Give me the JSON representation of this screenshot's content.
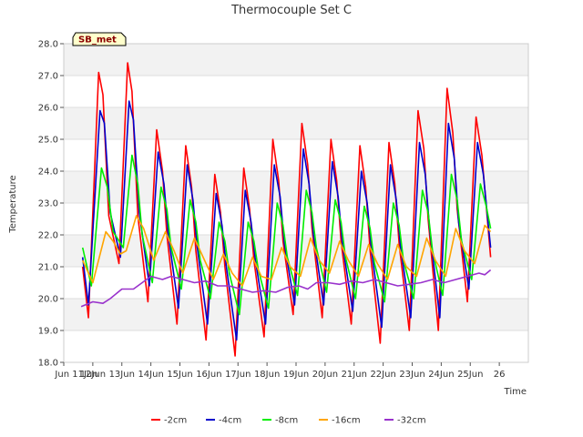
{
  "chart_data": {
    "type": "line",
    "title": "Thermocouple Set C",
    "xlabel": "Time",
    "ylabel": "Temperature",
    "badge": "SB_met",
    "ylim": [
      18.0,
      28.0
    ],
    "xlim": [
      0,
      16
    ],
    "yticks": [
      "18.0",
      "19.0",
      "20.0",
      "21.0",
      "22.0",
      "23.0",
      "24.0",
      "25.0",
      "26.0",
      "27.0",
      "28.0"
    ],
    "xticks": [
      "Jun 11Jun",
      "12Jun",
      "13Jun",
      "14Jun",
      "15Jun",
      "16Jun",
      "17Jun",
      "18Jun",
      "19Jun",
      "20Jun",
      "21Jun",
      "22Jun",
      "23Jun",
      "24Jun",
      "25Jun",
      "26"
    ],
    "grid": "horizontal bands",
    "legend_position": "bottom",
    "series": [
      {
        "name": "-2cm",
        "color": "#ff0000",
        "points": [
          [
            0.65,
            21.0
          ],
          [
            0.85,
            19.4
          ],
          [
            1.2,
            27.1
          ],
          [
            1.35,
            26.4
          ],
          [
            1.55,
            22.6
          ],
          [
            1.9,
            21.1
          ],
          [
            2.2,
            27.4
          ],
          [
            2.35,
            26.5
          ],
          [
            2.55,
            22.6
          ],
          [
            2.9,
            19.9
          ],
          [
            3.2,
            25.3
          ],
          [
            3.4,
            24.0
          ],
          [
            3.55,
            22.0
          ],
          [
            3.9,
            19.2
          ],
          [
            4.2,
            24.8
          ],
          [
            4.4,
            23.5
          ],
          [
            4.55,
            21.5
          ],
          [
            4.9,
            18.7
          ],
          [
            5.2,
            23.9
          ],
          [
            5.4,
            22.7
          ],
          [
            5.55,
            21.0
          ],
          [
            5.9,
            18.2
          ],
          [
            6.2,
            24.1
          ],
          [
            6.4,
            22.8
          ],
          [
            6.55,
            21.2
          ],
          [
            6.9,
            18.8
          ],
          [
            7.2,
            25.0
          ],
          [
            7.4,
            23.7
          ],
          [
            7.55,
            21.8
          ],
          [
            7.9,
            19.5
          ],
          [
            8.2,
            25.5
          ],
          [
            8.4,
            24.2
          ],
          [
            8.55,
            22.2
          ],
          [
            8.9,
            19.4
          ],
          [
            9.2,
            25.0
          ],
          [
            9.4,
            23.7
          ],
          [
            9.55,
            21.8
          ],
          [
            9.9,
            19.2
          ],
          [
            10.2,
            24.8
          ],
          [
            10.4,
            23.5
          ],
          [
            10.55,
            21.5
          ],
          [
            10.9,
            18.6
          ],
          [
            11.2,
            24.9
          ],
          [
            11.4,
            23.6
          ],
          [
            11.55,
            21.7
          ],
          [
            11.9,
            19.0
          ],
          [
            12.2,
            25.9
          ],
          [
            12.4,
            24.7
          ],
          [
            12.55,
            22.5
          ],
          [
            12.9,
            19.0
          ],
          [
            13.2,
            26.6
          ],
          [
            13.4,
            25.2
          ],
          [
            13.55,
            22.8
          ],
          [
            13.9,
            19.9
          ],
          [
            14.2,
            25.7
          ],
          [
            14.4,
            24.5
          ],
          [
            14.55,
            22.9
          ],
          [
            14.7,
            21.3
          ]
        ]
      },
      {
        "name": "-4cm",
        "color": "#0000cc",
        "points": [
          [
            0.65,
            21.3
          ],
          [
            0.85,
            19.8
          ],
          [
            1.25,
            25.9
          ],
          [
            1.4,
            25.5
          ],
          [
            1.6,
            22.7
          ],
          [
            1.95,
            21.3
          ],
          [
            2.25,
            26.2
          ],
          [
            2.4,
            25.6
          ],
          [
            2.6,
            22.7
          ],
          [
            2.95,
            20.4
          ],
          [
            3.25,
            24.6
          ],
          [
            3.45,
            23.6
          ],
          [
            3.6,
            22.0
          ],
          [
            3.95,
            19.7
          ],
          [
            4.25,
            24.2
          ],
          [
            4.45,
            23.1
          ],
          [
            4.6,
            21.6
          ],
          [
            4.95,
            19.2
          ],
          [
            5.25,
            23.3
          ],
          [
            5.45,
            22.3
          ],
          [
            5.6,
            21.0
          ],
          [
            5.95,
            18.7
          ],
          [
            6.25,
            23.4
          ],
          [
            6.45,
            22.4
          ],
          [
            6.6,
            21.2
          ],
          [
            6.95,
            19.2
          ],
          [
            7.25,
            24.2
          ],
          [
            7.45,
            23.2
          ],
          [
            7.6,
            21.7
          ],
          [
            7.95,
            19.8
          ],
          [
            8.25,
            24.7
          ],
          [
            8.45,
            23.6
          ],
          [
            8.6,
            22.0
          ],
          [
            8.95,
            19.8
          ],
          [
            9.25,
            24.3
          ],
          [
            9.45,
            23.2
          ],
          [
            9.6,
            21.7
          ],
          [
            9.95,
            19.6
          ],
          [
            10.25,
            24.0
          ],
          [
            10.45,
            23.0
          ],
          [
            10.6,
            21.5
          ],
          [
            10.95,
            19.1
          ],
          [
            11.25,
            24.2
          ],
          [
            11.45,
            23.1
          ],
          [
            11.6,
            21.6
          ],
          [
            11.95,
            19.4
          ],
          [
            12.25,
            24.9
          ],
          [
            12.45,
            23.9
          ],
          [
            12.6,
            22.2
          ],
          [
            12.95,
            19.4
          ],
          [
            13.25,
            25.5
          ],
          [
            13.45,
            24.4
          ],
          [
            13.6,
            22.4
          ],
          [
            13.95,
            20.3
          ],
          [
            14.25,
            24.9
          ],
          [
            14.45,
            23.9
          ],
          [
            14.6,
            22.5
          ],
          [
            14.7,
            21.6
          ]
        ]
      },
      {
        "name": "-8cm",
        "color": "#00ee00",
        "points": [
          [
            0.65,
            21.6
          ],
          [
            0.95,
            20.4
          ],
          [
            1.3,
            24.1
          ],
          [
            1.5,
            23.5
          ],
          [
            1.7,
            22.1
          ],
          [
            2.05,
            21.6
          ],
          [
            2.35,
            24.5
          ],
          [
            2.55,
            23.6
          ],
          [
            2.7,
            22.0
          ],
          [
            3.05,
            20.5
          ],
          [
            3.35,
            23.5
          ],
          [
            3.55,
            22.8
          ],
          [
            3.7,
            21.6
          ],
          [
            4.05,
            20.3
          ],
          [
            4.35,
            23.1
          ],
          [
            4.55,
            22.4
          ],
          [
            4.7,
            21.2
          ],
          [
            5.05,
            20.0
          ],
          [
            5.35,
            22.4
          ],
          [
            5.55,
            21.8
          ],
          [
            5.7,
            20.8
          ],
          [
            6.05,
            19.5
          ],
          [
            6.35,
            22.4
          ],
          [
            6.55,
            21.8
          ],
          [
            6.7,
            20.9
          ],
          [
            7.05,
            19.7
          ],
          [
            7.35,
            23.0
          ],
          [
            7.55,
            22.3
          ],
          [
            7.7,
            21.3
          ],
          [
            8.05,
            20.1
          ],
          [
            8.35,
            23.4
          ],
          [
            8.55,
            22.7
          ],
          [
            8.7,
            21.6
          ],
          [
            9.05,
            20.2
          ],
          [
            9.35,
            23.1
          ],
          [
            9.55,
            22.4
          ],
          [
            9.7,
            21.3
          ],
          [
            10.05,
            20.0
          ],
          [
            10.35,
            22.9
          ],
          [
            10.55,
            22.2
          ],
          [
            10.7,
            21.1
          ],
          [
            11.05,
            19.9
          ],
          [
            11.35,
            23.0
          ],
          [
            11.55,
            22.3
          ],
          [
            11.7,
            21.2
          ],
          [
            12.05,
            20.0
          ],
          [
            12.35,
            23.4
          ],
          [
            12.55,
            22.7
          ],
          [
            12.7,
            21.5
          ],
          [
            13.05,
            20.1
          ],
          [
            13.35,
            23.9
          ],
          [
            13.55,
            23.1
          ],
          [
            13.7,
            21.8
          ],
          [
            14.05,
            20.6
          ],
          [
            14.35,
            23.6
          ],
          [
            14.55,
            22.9
          ],
          [
            14.7,
            22.2
          ]
        ]
      },
      {
        "name": "-16cm",
        "color": "#ffa500",
        "points": [
          [
            0.65,
            21.2
          ],
          [
            1.0,
            20.5
          ],
          [
            1.45,
            22.1
          ],
          [
            1.7,
            21.8
          ],
          [
            1.95,
            21.4
          ],
          [
            2.15,
            21.5
          ],
          [
            2.5,
            22.6
          ],
          [
            2.75,
            22.2
          ],
          [
            3.1,
            21.2
          ],
          [
            3.5,
            22.1
          ],
          [
            3.8,
            21.5
          ],
          [
            4.1,
            20.8
          ],
          [
            4.5,
            21.9
          ],
          [
            4.8,
            21.3
          ],
          [
            5.15,
            20.6
          ],
          [
            5.5,
            21.4
          ],
          [
            5.8,
            20.8
          ],
          [
            6.15,
            20.4
          ],
          [
            6.5,
            21.3
          ],
          [
            6.8,
            20.7
          ],
          [
            7.15,
            20.6
          ],
          [
            7.5,
            21.6
          ],
          [
            7.8,
            21.0
          ],
          [
            8.15,
            20.7
          ],
          [
            8.5,
            21.9
          ],
          [
            8.8,
            21.2
          ],
          [
            9.15,
            20.8
          ],
          [
            9.5,
            21.8
          ],
          [
            9.8,
            21.2
          ],
          [
            10.15,
            20.7
          ],
          [
            10.5,
            21.7
          ],
          [
            10.8,
            21.1
          ],
          [
            11.15,
            20.6
          ],
          [
            11.5,
            21.7
          ],
          [
            11.8,
            21.0
          ],
          [
            12.15,
            20.7
          ],
          [
            12.5,
            21.9
          ],
          [
            12.8,
            21.2
          ],
          [
            13.15,
            20.7
          ],
          [
            13.5,
            22.2
          ],
          [
            13.8,
            21.5
          ],
          [
            14.15,
            21.1
          ],
          [
            14.5,
            22.3
          ],
          [
            14.7,
            22.1
          ]
        ]
      },
      {
        "name": "-32cm",
        "color": "#9932cc",
        "points": [
          [
            0.6,
            19.75
          ],
          [
            1.0,
            19.9
          ],
          [
            1.35,
            19.85
          ],
          [
            1.6,
            20.0
          ],
          [
            2.0,
            20.3
          ],
          [
            2.4,
            20.3
          ],
          [
            2.7,
            20.5
          ],
          [
            3.0,
            20.7
          ],
          [
            3.4,
            20.6
          ],
          [
            3.7,
            20.7
          ],
          [
            4.1,
            20.6
          ],
          [
            4.5,
            20.5
          ],
          [
            4.9,
            20.55
          ],
          [
            5.3,
            20.4
          ],
          [
            5.7,
            20.4
          ],
          [
            6.1,
            20.3
          ],
          [
            6.5,
            20.2
          ],
          [
            6.9,
            20.25
          ],
          [
            7.3,
            20.2
          ],
          [
            7.7,
            20.35
          ],
          [
            8.1,
            20.4
          ],
          [
            8.4,
            20.3
          ],
          [
            8.7,
            20.5
          ],
          [
            9.1,
            20.5
          ],
          [
            9.5,
            20.45
          ],
          [
            9.9,
            20.55
          ],
          [
            10.3,
            20.5
          ],
          [
            10.7,
            20.6
          ],
          [
            11.1,
            20.5
          ],
          [
            11.5,
            20.4
          ],
          [
            11.9,
            20.45
          ],
          [
            12.3,
            20.5
          ],
          [
            12.7,
            20.6
          ],
          [
            13.1,
            20.5
          ],
          [
            13.5,
            20.6
          ],
          [
            13.9,
            20.7
          ],
          [
            14.3,
            20.8
          ],
          [
            14.5,
            20.75
          ],
          [
            14.7,
            20.9
          ]
        ]
      }
    ]
  }
}
